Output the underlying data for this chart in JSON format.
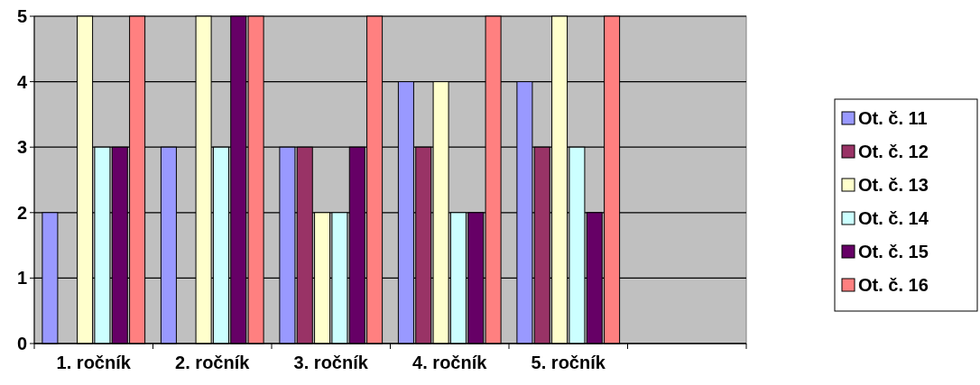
{
  "chart_data": {
    "type": "bar",
    "categories": [
      "1. ročník",
      "2. ročník",
      "3. ročník",
      "4. ročník",
      "5. ročník",
      null
    ],
    "series": [
      {
        "name": "Ot. č. 11",
        "color": "#9999ff",
        "values": [
          2,
          3,
          3,
          4,
          4,
          null
        ]
      },
      {
        "name": "Ot. č. 12",
        "color": "#993366",
        "values": [
          0,
          0,
          3,
          3,
          3,
          null
        ]
      },
      {
        "name": "Ot. č. 13",
        "color": "#ffffcc",
        "values": [
          5,
          5,
          2,
          4,
          5,
          null
        ]
      },
      {
        "name": "Ot. č. 14",
        "color": "#ccffff",
        "values": [
          3,
          3,
          2,
          2,
          3,
          null
        ]
      },
      {
        "name": "Ot. č. 15",
        "color": "#660066",
        "values": [
          3,
          5,
          3,
          2,
          2,
          null
        ]
      },
      {
        "name": "Ot. č. 16",
        "color": "#ff8080",
        "values": [
          5,
          5,
          5,
          5,
          5,
          null
        ]
      }
    ],
    "ylim": [
      0,
      5
    ],
    "yticks": [
      0,
      1,
      2,
      3,
      4,
      5
    ],
    "grid": "y",
    "legend": "right"
  }
}
